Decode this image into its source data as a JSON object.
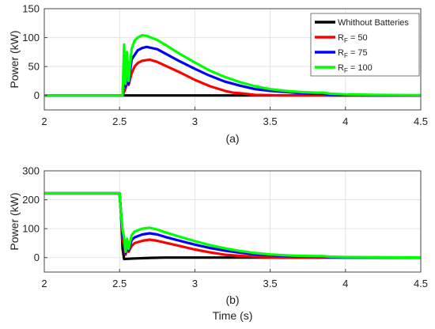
{
  "chart_data": [
    {
      "type": "line",
      "caption": "(a)",
      "title": "",
      "xlabel": "",
      "ylabel": "Power (kW)",
      "xlim": [
        2,
        4.5
      ],
      "ylim": [
        -25,
        150
      ],
      "xticks": [
        "2",
        "2.5",
        "3",
        "3.5",
        "4",
        "4.5"
      ],
      "xtick_values": [
        2,
        2.5,
        3,
        3.5,
        4,
        4.5
      ],
      "yticks": [
        "0",
        "50",
        "100",
        "150"
      ],
      "ytick_values": [
        0,
        50,
        100,
        150
      ],
      "grid": true,
      "legend_position": "top-right",
      "legend": [
        {
          "main": "Whithout Batteries",
          "sub": "",
          "suffix": "",
          "color": "#000000"
        },
        {
          "main": "R",
          "sub": "F",
          "suffix": " = 50",
          "color": "#ff0000"
        },
        {
          "main": "R",
          "sub": "F",
          "suffix": " = 75",
          "color": "#0000ff"
        },
        {
          "main": "R",
          "sub": "F",
          "suffix": " = 100",
          "color": "#00ff00"
        }
      ],
      "series": [
        {
          "color": "#000000",
          "x": [
            2,
            2.5,
            3,
            3.5,
            4,
            4.5
          ],
          "y": [
            0,
            0,
            0,
            0,
            0,
            0
          ]
        },
        {
          "color": "#ff0000",
          "x": [
            2,
            2.5,
            2.52,
            2.54,
            2.55,
            2.56,
            2.58,
            2.6,
            2.62,
            2.65,
            2.7,
            2.75,
            2.8,
            2.9,
            3.0,
            3.1,
            3.2,
            3.25,
            3.3,
            3.4,
            3.5,
            3.6,
            3.8,
            4.0,
            4.5
          ],
          "y": [
            0,
            0,
            0,
            12,
            30,
            18,
            38,
            50,
            56,
            60,
            62,
            58,
            52,
            40,
            27,
            16,
            8,
            5,
            4,
            1,
            0.5,
            0,
            0,
            0,
            0
          ]
        },
        {
          "color": "#0000ff",
          "x": [
            2,
            2.5,
            2.52,
            2.53,
            2.54,
            2.55,
            2.56,
            2.58,
            2.6,
            2.62,
            2.65,
            2.68,
            2.75,
            2.8,
            2.9,
            3.0,
            3.1,
            3.2,
            3.3,
            3.4,
            3.5,
            3.6,
            3.7,
            3.8,
            3.85,
            3.9,
            4.0,
            4.2,
            4.5
          ],
          "y": [
            0,
            0,
            0,
            55,
            15,
            45,
            20,
            62,
            70,
            78,
            82,
            84,
            80,
            73,
            59,
            46,
            34,
            24,
            17,
            11,
            8,
            6,
            4,
            3,
            3,
            1,
            0.5,
            0,
            0
          ]
        },
        {
          "color": "#00ff00",
          "x": [
            2,
            2.5,
            2.52,
            2.53,
            2.54,
            2.55,
            2.56,
            2.58,
            2.6,
            2.62,
            2.65,
            2.68,
            2.75,
            2.8,
            2.9,
            3.0,
            3.1,
            3.2,
            3.3,
            3.4,
            3.5,
            3.6,
            3.7,
            3.8,
            3.85,
            3.9,
            4.0,
            4.2,
            4.5
          ],
          "y": [
            0,
            0,
            0,
            88,
            20,
            75,
            25,
            80,
            95,
            100,
            104,
            103,
            96,
            88,
            72,
            57,
            43,
            32,
            23,
            16,
            11,
            8,
            6,
            5,
            5,
            3,
            2,
            1,
            0.5
          ]
        }
      ]
    },
    {
      "type": "line",
      "caption": "(b)",
      "title": "",
      "xlabel": "Time (s)",
      "ylabel": "Power (kW)",
      "xlim": [
        2,
        4.5
      ],
      "ylim": [
        -50,
        300
      ],
      "xticks": [
        "2",
        "2.5",
        "3",
        "3.5",
        "4",
        "4.5"
      ],
      "xtick_values": [
        2,
        2.5,
        3,
        3.5,
        4,
        4.5
      ],
      "yticks": [
        "0",
        "100",
        "200",
        "300"
      ],
      "ytick_values": [
        0,
        100,
        200,
        300
      ],
      "grid": true,
      "series": [
        {
          "color": "#000000",
          "x": [
            2,
            2.5,
            2.51,
            2.52,
            2.53,
            2.56,
            2.6,
            2.7,
            2.8,
            3.0,
            3.5,
            4.5
          ],
          "y": [
            222,
            222,
            150,
            30,
            -5,
            -4,
            -3,
            -1,
            0,
            0,
            0,
            0
          ]
        },
        {
          "color": "#ff0000",
          "x": [
            2,
            2.5,
            2.51,
            2.52,
            2.53,
            2.54,
            2.55,
            2.56,
            2.58,
            2.6,
            2.65,
            2.7,
            2.75,
            2.8,
            2.9,
            3.0,
            3.1,
            3.2,
            3.3,
            3.4,
            3.5,
            3.6,
            3.8,
            4.0,
            4.5
          ],
          "y": [
            222,
            222,
            150,
            60,
            40,
            10,
            35,
            20,
            40,
            50,
            58,
            62,
            58,
            52,
            40,
            28,
            18,
            10,
            6,
            3,
            1,
            0,
            0,
            0,
            0
          ]
        },
        {
          "color": "#0000ff",
          "x": [
            2,
            2.5,
            2.51,
            2.52,
            2.53,
            2.54,
            2.55,
            2.56,
            2.58,
            2.6,
            2.65,
            2.7,
            2.75,
            2.8,
            2.9,
            3.0,
            3.1,
            3.2,
            3.3,
            3.4,
            3.5,
            3.6,
            3.7,
            3.8,
            3.85,
            3.9,
            4.0,
            4.5
          ],
          "y": [
            222,
            222,
            150,
            80,
            55,
            15,
            50,
            25,
            60,
            70,
            80,
            84,
            80,
            72,
            58,
            45,
            33,
            24,
            17,
            11,
            8,
            6,
            4,
            3,
            3,
            1,
            0.5,
            0
          ]
        },
        {
          "color": "#00ff00",
          "x": [
            2,
            2.5,
            2.51,
            2.52,
            2.53,
            2.54,
            2.55,
            2.56,
            2.58,
            2.6,
            2.65,
            2.7,
            2.75,
            2.8,
            2.9,
            3.0,
            3.1,
            3.2,
            3.3,
            3.4,
            3.5,
            3.6,
            3.7,
            3.8,
            3.85,
            3.9,
            4.0,
            4.5
          ],
          "y": [
            222,
            222,
            150,
            95,
            70,
            20,
            65,
            30,
            78,
            90,
            100,
            103,
            97,
            88,
            72,
            57,
            43,
            32,
            23,
            16,
            11,
            8,
            6,
            5,
            5,
            3,
            2,
            0.5
          ]
        }
      ]
    }
  ]
}
